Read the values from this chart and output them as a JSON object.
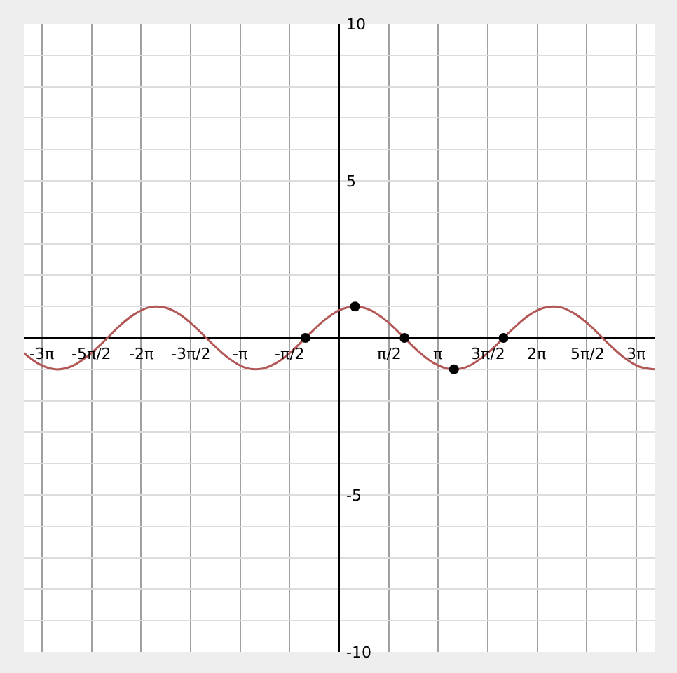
{
  "chart_data": {
    "type": "line",
    "xlim": [
      -10,
      10
    ],
    "ylim": [
      -10,
      10
    ],
    "xticks": [
      {
        "value": -9.42,
        "label": "-3π"
      },
      {
        "value": -7.85,
        "label": "-5π/2"
      },
      {
        "value": -6.28,
        "label": "-2π"
      },
      {
        "value": -4.71,
        "label": "-3π/2"
      },
      {
        "value": -3.14,
        "label": "-π"
      },
      {
        "value": -1.57,
        "label": "-π/2"
      },
      {
        "value": 1.57,
        "label": "π/2"
      },
      {
        "value": 3.14,
        "label": "π"
      },
      {
        "value": 4.71,
        "label": "3π/2"
      },
      {
        "value": 6.28,
        "label": "2π"
      },
      {
        "value": 7.85,
        "label": "5π/2"
      },
      {
        "value": 9.42,
        "label": "3π"
      }
    ],
    "yticks": [
      -10,
      {
        "value": -9,
        "label": null
      },
      {
        "value": -8,
        "label": null
      },
      {
        "value": -7,
        "label": null
      },
      {
        "value": -6,
        "label": null
      },
      -5,
      {
        "value": -4,
        "label": null
      },
      {
        "value": -3,
        "label": null
      },
      {
        "value": -2,
        "label": null
      },
      {
        "value": -1,
        "label": null
      },
      {
        "value": 0,
        "label": null
      },
      {
        "value": 1,
        "label": null
      },
      {
        "value": 2,
        "label": null
      },
      {
        "value": 3,
        "label": null
      },
      {
        "value": 4,
        "label": null
      },
      5,
      {
        "value": 6,
        "label": null
      },
      {
        "value": 7,
        "label": null
      },
      {
        "value": 8,
        "label": null
      },
      {
        "value": 9,
        "label": null
      },
      10
    ],
    "grid": true,
    "legend": false,
    "series": [
      {
        "color": "#b35656",
        "marker": "none",
        "line_style": "solid",
        "x": [
          -10,
          -9.5,
          -9,
          -8.5,
          -8,
          -7.5,
          -7,
          -6.5,
          -6,
          -5.5,
          -5,
          -4.5,
          -4,
          -3.5,
          -3,
          -2.5,
          -2,
          -1.5,
          -1,
          -0.5,
          0,
          0.5,
          1,
          1.5,
          2,
          2.5,
          3,
          3.5,
          4,
          4.5,
          5,
          5.5,
          6,
          6.5,
          7,
          7.5,
          8,
          8.5,
          9,
          9.5,
          10
        ],
        "values": [
          -0.48,
          -0.84,
          -1.0,
          -0.91,
          -0.6,
          -0.15,
          0.35,
          0.75,
          0.98,
          0.96,
          0.71,
          0.28,
          -0.21,
          -0.65,
          -0.94,
          -0.99,
          -0.8,
          -0.42,
          0.07,
          0.54,
          0.88,
          1.0,
          0.88,
          0.54,
          0.07,
          -0.42,
          -0.8,
          -0.99,
          -0.94,
          -0.65,
          -0.21,
          0.28,
          0.71,
          0.96,
          0.98,
          0.75,
          0.35,
          -0.15,
          -0.6,
          -0.91,
          -1.0
        ]
      },
      {
        "type": "scatter",
        "color": "#000000",
        "marker": "circle",
        "x": [
          -1.07,
          0.5,
          2.07,
          3.64,
          5.21
        ],
        "values": [
          0,
          1,
          0,
          -1,
          0
        ]
      }
    ]
  }
}
